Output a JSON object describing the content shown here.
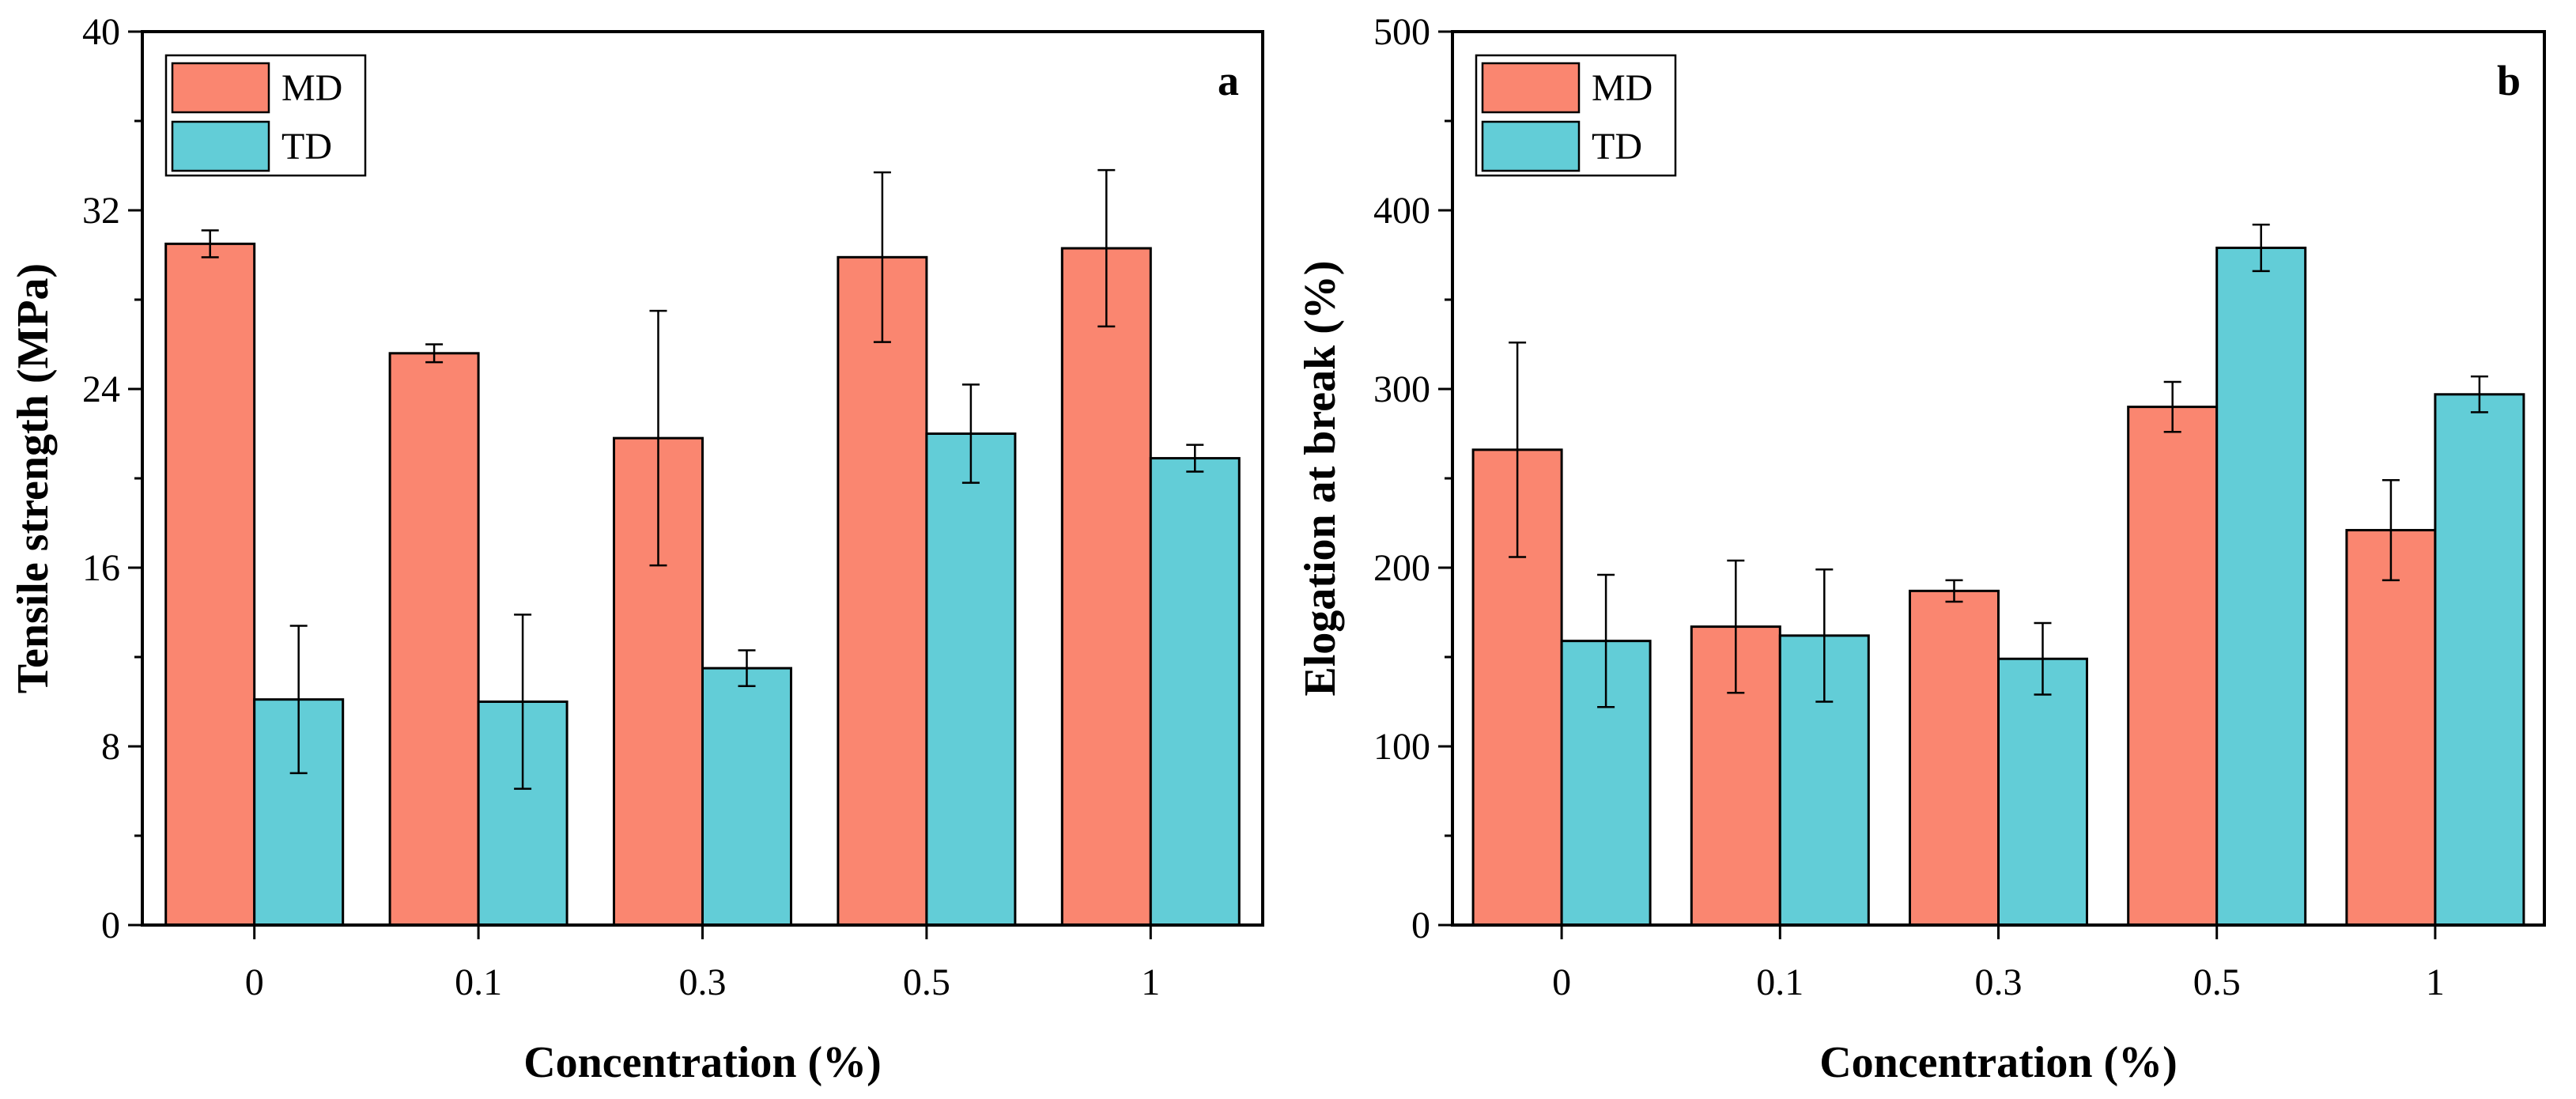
{
  "chart_data": [
    {
      "type": "bar",
      "panel_label": "a",
      "categories": [
        "0",
        "0.1",
        "0.3",
        "0.5",
        "1"
      ],
      "series": [
        {
          "name": "MD",
          "color": "#FA8670",
          "values": [
            30.5,
            25.6,
            21.8,
            29.9,
            30.3
          ],
          "errors": [
            0.6,
            0.4,
            5.7,
            3.8,
            3.5
          ]
        },
        {
          "name": "TD",
          "color": "#62CDD7",
          "values": [
            10.1,
            10.0,
            11.5,
            22.0,
            20.9
          ],
          "errors": [
            3.3,
            3.9,
            0.8,
            2.2,
            0.6
          ]
        }
      ],
      "title": "",
      "xlabel": "Concentration (%)",
      "ylabel": "Tensile strength (MPa)",
      "ylim": [
        0,
        40
      ],
      "yticks": [
        "0",
        "8",
        "16",
        "24",
        "32",
        "40"
      ],
      "legend": "top-left",
      "grid": false
    },
    {
      "type": "bar",
      "panel_label": "b",
      "categories": [
        "0",
        "0.1",
        "0.3",
        "0.5",
        "1"
      ],
      "series": [
        {
          "name": "MD",
          "color": "#FA8670",
          "values": [
            266,
            167,
            187,
            290,
            221
          ],
          "errors": [
            60,
            37,
            6,
            14,
            28
          ]
        },
        {
          "name": "TD",
          "color": "#62CDD7",
          "values": [
            159,
            162,
            149,
            379,
            297
          ],
          "errors": [
            37,
            37,
            20,
            13,
            10
          ]
        }
      ],
      "title": "",
      "xlabel": "Concentration (%)",
      "ylabel": "Elogation at break (%)",
      "ylim": [
        0,
        500
      ],
      "yticks": [
        "0",
        "100",
        "200",
        "300",
        "400",
        "500"
      ],
      "legend": "top-left",
      "grid": false
    }
  ]
}
